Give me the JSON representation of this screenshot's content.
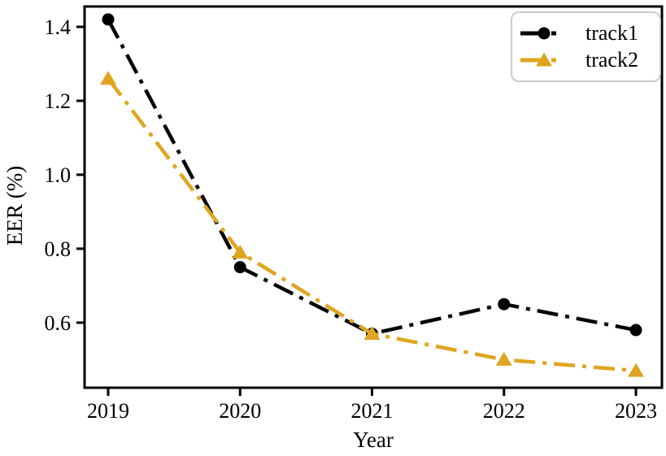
{
  "figure": {
    "background_color": "#ffffff",
    "axis_color": "#000000"
  },
  "chart_data": {
    "type": "line",
    "categories": [
      "2019",
      "2020",
      "2021",
      "2022",
      "2023"
    ],
    "x": [
      2019,
      2020,
      2021,
      2022,
      2023
    ],
    "series": [
      {
        "name": "track1",
        "values": [
          1.42,
          0.75,
          0.57,
          0.65,
          0.58
        ],
        "color": "#000000",
        "marker": "circle",
        "linestyle": "dashdot"
      },
      {
        "name": "track2",
        "values": [
          1.26,
          0.79,
          0.57,
          0.5,
          0.47
        ],
        "color": "#DFA520",
        "marker": "triangle-up",
        "linestyle": "dashdot"
      }
    ],
    "title": "",
    "xlabel": "Year",
    "ylabel": "EER (%)",
    "ylim": [
      0.424,
      1.455
    ],
    "yticks": [
      0.6,
      0.8,
      1.0,
      1.2,
      1.4
    ],
    "ytick_labels": [
      "0.6",
      "0.8",
      "1.0",
      "1.2",
      "1.4"
    ],
    "grid": false,
    "legend_position": "upper right"
  }
}
